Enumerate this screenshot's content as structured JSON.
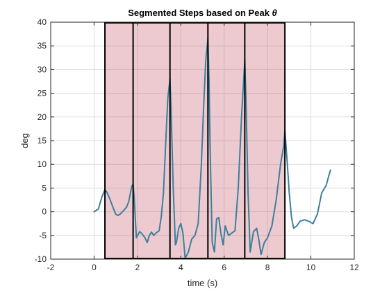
{
  "chart_data": {
    "type": "line",
    "title": "Segmented Steps based on Peak",
    "title_symbol": "θ",
    "xlabel": "time (s)",
    "ylabel": "deg",
    "xlim": [
      -2,
      12
    ],
    "ylim": [
      -10,
      40
    ],
    "xticks": [
      -2,
      0,
      2,
      4,
      6,
      8,
      10,
      12
    ],
    "yticks": [
      -10,
      -5,
      0,
      5,
      10,
      15,
      20,
      25,
      30,
      35,
      40
    ],
    "grid": true,
    "colors": {
      "line": "#3d7f9a",
      "segment_fill": "#c85a6e",
      "segment_fill_opacity": 0.32,
      "segment_edge": "#000000",
      "grid": "#dcdcdc",
      "axes": "#262626"
    },
    "segment_boundaries": [
      0.5,
      1.8,
      3.5,
      5.25,
      6.95,
      8.8
    ],
    "segments": [
      {
        "start": 0.5,
        "end": 1.8
      },
      {
        "start": 1.8,
        "end": 3.5
      },
      {
        "start": 3.5,
        "end": 5.25
      },
      {
        "start": 5.25,
        "end": 6.95
      },
      {
        "start": 6.95,
        "end": 8.8
      }
    ],
    "series": [
      {
        "x": [
          0.0,
          0.2,
          0.35,
          0.5,
          0.6,
          0.7,
          0.8,
          0.9,
          1.0,
          1.1,
          1.2,
          1.35,
          1.5,
          1.6,
          1.7,
          1.75,
          1.8,
          1.85,
          1.95,
          2.1,
          2.2,
          2.35,
          2.45,
          2.55,
          2.65,
          2.75,
          2.85,
          3.0,
          3.1,
          3.2,
          3.3,
          3.4,
          3.5,
          3.55,
          3.65,
          3.75,
          3.8,
          3.9,
          4.0,
          4.1,
          4.2,
          4.35,
          4.5,
          4.65,
          4.8,
          4.95,
          5.05,
          5.15,
          5.25,
          5.3,
          5.35,
          5.45,
          5.55,
          5.65,
          5.75,
          5.85,
          5.95,
          6.05,
          6.2,
          6.35,
          6.5,
          6.65,
          6.8,
          6.95,
          7.0,
          7.1,
          7.2,
          7.35,
          7.5,
          7.6,
          7.7,
          7.85,
          8.0,
          8.2,
          8.4,
          8.6,
          8.75,
          8.8,
          8.9,
          9.0,
          9.1,
          9.2,
          9.35,
          9.5,
          9.7,
          9.9,
          10.1,
          10.3,
          10.5,
          10.7,
          10.9
        ],
        "y": [
          0.0,
          0.6,
          3.0,
          4.7,
          4.0,
          3.0,
          1.8,
          0.6,
          -0.5,
          -0.8,
          -0.5,
          0.2,
          1.0,
          2.2,
          4.5,
          5.5,
          5.8,
          3.0,
          -5.5,
          -4.2,
          -4.6,
          -5.5,
          -6.5,
          -5.0,
          -4.3,
          -5.0,
          -4.5,
          -4.0,
          -1.0,
          4.0,
          14.0,
          24.0,
          28.0,
          22.0,
          5.0,
          -7.0,
          -6.5,
          -3.5,
          -2.5,
          -4.5,
          -9.8,
          -8.5,
          -5.8,
          -5.0,
          -2.5,
          10.0,
          22.0,
          32.0,
          36.5,
          28.0,
          14.0,
          -6.5,
          -8.5,
          -1.5,
          -1.2,
          -4.5,
          -7.0,
          -3.0,
          -5.0,
          -4.5,
          -4.0,
          5.0,
          20.0,
          32.0,
          25.0,
          4.0,
          -8.5,
          -4.2,
          -3.5,
          -6.0,
          -9.0,
          -6.5,
          -5.5,
          -3.0,
          2.5,
          10.0,
          14.0,
          17.2,
          11.0,
          4.0,
          -1.0,
          -3.5,
          -3.0,
          -2.0,
          -1.7,
          -2.0,
          -2.5,
          -0.5,
          4.0,
          5.5,
          8.8
        ]
      }
    ]
  }
}
